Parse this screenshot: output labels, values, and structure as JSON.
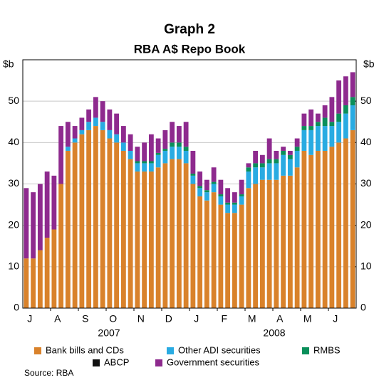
{
  "chart_data": {
    "type": "stacked_bar",
    "title": "Graph 2",
    "subtitle": "RBA A$ Repo Book",
    "y_label": "$b",
    "y2_label": "$b",
    "categories": [
      null,
      "J",
      null,
      null,
      null,
      "A",
      null,
      null,
      null,
      "S",
      null,
      null,
      null,
      "O",
      null,
      null,
      null,
      "N",
      null,
      null,
      null,
      "D",
      null,
      null,
      null,
      "J",
      null,
      null,
      null,
      "F",
      null,
      null,
      null,
      "M",
      null,
      null,
      null,
      "A",
      null,
      null,
      null,
      "M",
      null,
      null,
      null,
      "J",
      null,
      null
    ],
    "year_labels": [
      "2007",
      "2008"
    ],
    "series": [
      {
        "name": "Bank bills and CDs",
        "color": "#d9822b",
        "values": [
          12,
          12,
          14,
          17,
          19,
          30,
          38,
          40,
          42,
          43,
          44,
          43,
          41,
          40,
          38,
          36,
          33,
          33,
          33,
          34,
          35,
          36,
          36,
          35,
          30,
          27,
          26,
          28,
          25,
          23,
          23,
          25,
          29,
          30,
          31,
          31,
          31,
          32,
          32,
          34,
          38,
          37,
          38,
          38,
          39,
          40,
          41,
          43
        ]
      },
      {
        "name": "Other ADI securities",
        "color": "#29abe2",
        "values": [
          0,
          0,
          0,
          0,
          0,
          0,
          1,
          1,
          1,
          2,
          2,
          2,
          2,
          2,
          2,
          2,
          2,
          2,
          2,
          3,
          3,
          3,
          3,
          3,
          2,
          2,
          2,
          2,
          2,
          2,
          2,
          2,
          4,
          4,
          3,
          4,
          4,
          5,
          4,
          4,
          5,
          6,
          6,
          6,
          5,
          5,
          6,
          6
        ]
      },
      {
        "name": "RMBS",
        "color": "#0a8f5a",
        "values": [
          0,
          0,
          0,
          0,
          0,
          0,
          0,
          0,
          0,
          0,
          0,
          0,
          0,
          0,
          0,
          0,
          0.5,
          0.5,
          0.5,
          0.5,
          0.5,
          1,
          1,
          1,
          0.5,
          0.5,
          0.5,
          0.5,
          0.5,
          0.5,
          0.5,
          0.5,
          1,
          1,
          1,
          1,
          1,
          1,
          1,
          1,
          1,
          1,
          1,
          2,
          1,
          2,
          2,
          2
        ]
      },
      {
        "name": "ABCP",
        "color": "#111111",
        "values": [
          0,
          0,
          0,
          0,
          0,
          0,
          0,
          0,
          0,
          0,
          0,
          0,
          0,
          0,
          0,
          0,
          0,
          0,
          0,
          0,
          0,
          0,
          0,
          0,
          0,
          0,
          0,
          0,
          0,
          0,
          0,
          0,
          0,
          0,
          0,
          0,
          0,
          0,
          0,
          0,
          0,
          0,
          0,
          0,
          0,
          0,
          0,
          0
        ]
      },
      {
        "name": "Government securities",
        "color": "#8e2a8e",
        "values": [
          17,
          16,
          16,
          16,
          13,
          14,
          6,
          3,
          3,
          3,
          5,
          5,
          5,
          5,
          4,
          4,
          3.5,
          4.5,
          6.5,
          3.5,
          4.5,
          5,
          4,
          6,
          5.5,
          3.5,
          2.5,
          3.5,
          3.5,
          3.5,
          2.5,
          3.5,
          1,
          3,
          2,
          5,
          2,
          1,
          1,
          2,
          3,
          4,
          2,
          3,
          6,
          8,
          7,
          6
        ]
      }
    ],
    "ylim": [
      0,
      60
    ],
    "yticks": [
      0,
      10,
      20,
      30,
      40,
      50
    ],
    "y2lim": [
      0,
      60
    ],
    "y2ticks": [
      0,
      10,
      20,
      30,
      40,
      50
    ],
    "grid": true,
    "source": "Source: RBA"
  }
}
